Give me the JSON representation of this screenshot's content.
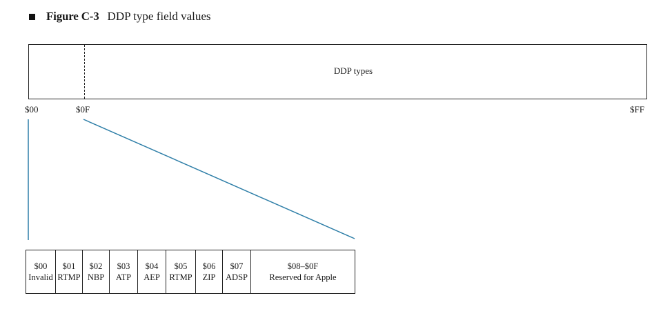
{
  "figure": {
    "label": "Figure C-3",
    "title": "DDP type field values"
  },
  "overview": {
    "bar_label": "DDP types",
    "ticks": [
      "$00",
      "$0F",
      "$FF"
    ]
  },
  "types": [
    {
      "value": "$00",
      "name": "Invalid"
    },
    {
      "value": "$01",
      "name": "RTMP"
    },
    {
      "value": "$02",
      "name": "NBP"
    },
    {
      "value": "$03",
      "name": "ATP"
    },
    {
      "value": "$04",
      "name": "AEP"
    },
    {
      "value": "$05",
      "name": "RTMP"
    },
    {
      "value": "$06",
      "name": "ZIP"
    },
    {
      "value": "$07",
      "name": "ADSP"
    },
    {
      "value": "$08–$0F",
      "name": "Reserved for Apple"
    }
  ],
  "colors": {
    "leader_line": "#2f7fa8",
    "border": "#222222"
  }
}
